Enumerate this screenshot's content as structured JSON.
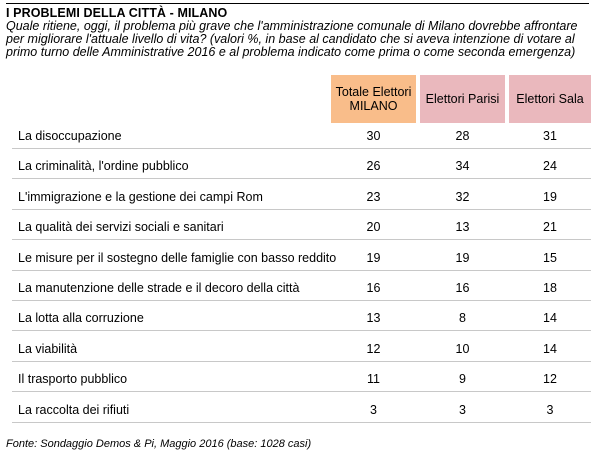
{
  "chart_data": {
    "type": "table",
    "title": "I PROBLEMI DELLA CITTÀ - MILANO",
    "subtitle": "Quale ritiene, oggi, il problema più grave che l'amministrazione comunale di Milano dovrebbe affrontare per migliorare l'attuale livello di vita? (valori %, in base al candidato che si aveva intenzione di votare al primo turno delle Amministrative 2016 e al problema indicato come prima o come seconda emergenza)",
    "columns": [
      "Totale Elettori MILANO",
      "Elettori Parisi",
      "Elettori Sala"
    ],
    "column_colors": [
      "#f9bd8a",
      "#eab8bd",
      "#eab8bd"
    ],
    "categories": [
      "La disoccupazione",
      "La criminalità, l'ordine pubblico",
      "L'immigrazione e la gestione dei campi Rom",
      "La qualità dei servizi sociali e sanitari",
      "Le misure per il sostegno delle famiglie con basso reddito",
      "La manutenzione delle strade e il decoro della città",
      "La lotta alla corruzione",
      "La viabilità",
      "Il trasporto pubblico",
      "La raccolta dei rifiuti"
    ],
    "series": [
      {
        "name": "Totale Elettori MILANO",
        "values": [
          30,
          26,
          23,
          20,
          19,
          16,
          13,
          12,
          11,
          3
        ]
      },
      {
        "name": "Elettori Parisi",
        "values": [
          28,
          34,
          32,
          13,
          19,
          16,
          8,
          10,
          9,
          3
        ]
      },
      {
        "name": "Elettori Sala",
        "values": [
          31,
          24,
          19,
          21,
          15,
          18,
          14,
          14,
          12,
          3
        ]
      }
    ],
    "source": "Fonte: Sondaggio Demos & Pi, Maggio 2016 (base: 1028 casi)"
  }
}
